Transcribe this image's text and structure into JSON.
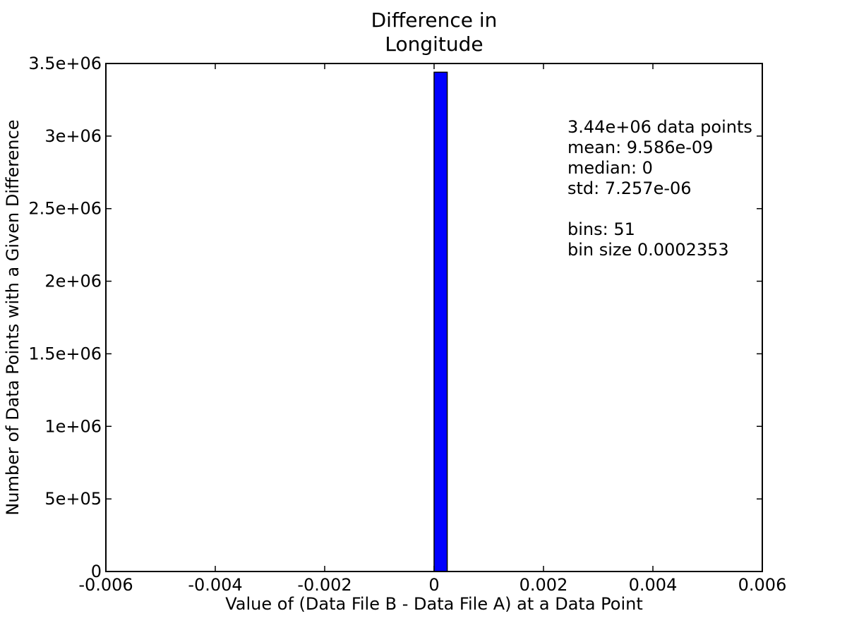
{
  "chart_data": {
    "type": "bar",
    "title": [
      "Difference in",
      "Longitude"
    ],
    "xlabel": "Value of (Data File B - Data File A) at a Data Point",
    "ylabel": "Number of Data Points with a Given Difference",
    "xlim": [
      -0.006,
      0.006
    ],
    "ylim": [
      0,
      3500000
    ],
    "x_ticks": [
      {
        "value": -0.006,
        "label": "-0.006"
      },
      {
        "value": -0.004,
        "label": "-0.004"
      },
      {
        "value": -0.002,
        "label": "-0.002"
      },
      {
        "value": 0,
        "label": "0"
      },
      {
        "value": 0.002,
        "label": "0.002"
      },
      {
        "value": 0.004,
        "label": "0.004"
      },
      {
        "value": 0.006,
        "label": "0.006"
      }
    ],
    "y_ticks": [
      {
        "value": 0,
        "label": "0"
      },
      {
        "value": 500000,
        "label": "5e+05"
      },
      {
        "value": 1000000,
        "label": "1e+06"
      },
      {
        "value": 1500000,
        "label": "1.5e+06"
      },
      {
        "value": 2000000,
        "label": "2e+06"
      },
      {
        "value": 2500000,
        "label": "2.5e+06"
      },
      {
        "value": 3000000,
        "label": "3e+06"
      },
      {
        "value": 3500000,
        "label": "3.5e+06"
      }
    ],
    "bins": [
      {
        "x0": -0.005,
        "x1": 0.0,
        "count": 0
      },
      {
        "x0": 0.0,
        "x1": 0.00024,
        "count": 3440000
      },
      {
        "x0": 0.00024,
        "x1": 0.0055,
        "count": 0
      }
    ],
    "bar_color": "#0000ff",
    "grid": false,
    "annotation_lines": [
      "3.44e+06 data points",
      "mean: 9.586e-09",
      "median: 0",
      "std: 7.257e-06",
      "",
      "bins: 51",
      "bin size 0.0002353"
    ]
  }
}
